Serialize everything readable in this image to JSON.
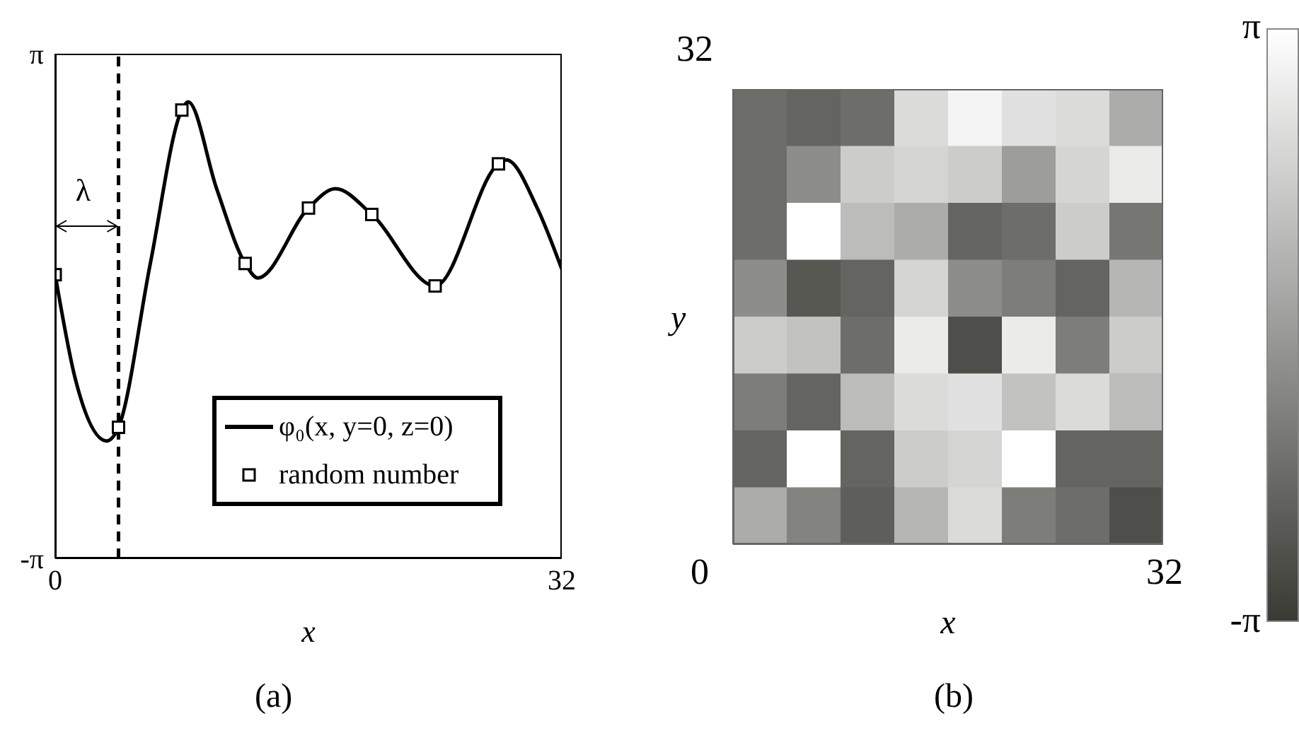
{
  "chart_data": [
    {
      "type": "line",
      "title": "(a)",
      "xlabel": "x",
      "xlim": [
        0,
        32
      ],
      "xticks": [
        0,
        32
      ],
      "ylim": [
        -3.1416,
        3.1416
      ],
      "yticks": [
        {
          "value": -3.1416,
          "label": "-π"
        },
        {
          "value": 3.1416,
          "label": "π"
        }
      ],
      "legend": "bottom right",
      "grid": false,
      "annotations": [
        "λ"
      ],
      "ref_lines": [
        {
          "axis": "x",
          "value": 4,
          "line_style": "dashed",
          "color": "#000000"
        }
      ],
      "series": [
        {
          "name": "φ₀(x, y=0, z=0)",
          "type": "line",
          "color": "#000000",
          "marker": "none",
          "x": [
            0,
            1.25,
            3.26,
            4,
            6,
            8,
            8.4,
            10.2,
            12,
            12.8,
            16,
            17.7,
            20,
            24,
            28,
            28.5,
            30.45,
            32
          ],
          "values": [
            0.39,
            -0.89,
            -1.68,
            -1.51,
            0.52,
            2.44,
            2.54,
            1.46,
            0.53,
            0.35,
            1.22,
            1.46,
            1.14,
            0.25,
            1.77,
            1.82,
            1.22,
            0.46
          ]
        },
        {
          "name": "random number",
          "type": "scatter",
          "color": "#000000",
          "marker": "square",
          "x": [
            0,
            4,
            8,
            12,
            16,
            20,
            24,
            28
          ],
          "values": [
            0.39,
            -1.51,
            2.44,
            0.53,
            1.22,
            1.14,
            0.25,
            1.77
          ]
        }
      ]
    },
    {
      "type": "heatmap",
      "title": "(b)",
      "xlabel": "x",
      "ylabel": "y",
      "annotations": [
        "32",
        "0",
        "32"
      ],
      "categories": [
        null,
        null,
        null,
        null,
        null,
        null,
        null,
        null
      ],
      "y_categories": [
        null,
        null,
        null,
        null,
        null,
        null,
        null,
        null
      ],
      "clim": [
        -3.1416,
        3.1416
      ],
      "cticks": [
        {
          "value": -3.1416,
          "label": "-π"
        },
        {
          "value": 3.1416,
          "label": "π"
        }
      ],
      "cells": [
        [
          -1.5,
          -1.8,
          -1.5,
          2.0,
          2.8,
          2.2,
          2.0,
          0.5
        ],
        [
          -1.5,
          -0.5,
          1.5,
          1.8,
          1.5,
          0,
          1.8,
          2.5
        ],
        [
          -1.5,
          3.1,
          1.0,
          0.5,
          -1.8,
          -1.5,
          1.5,
          -1.2
        ],
        [
          -0.5,
          -2.2,
          -1.8,
          1.8,
          -0.5,
          -1.0,
          -1.8,
          0.8
        ],
        [
          1.5,
          1.2,
          -1.5,
          2.5,
          -2.5,
          2.5,
          -1.0,
          1.5
        ],
        [
          -1.0,
          -1.8,
          1.0,
          2.0,
          2.2,
          1.2,
          2.0,
          1.0
        ],
        [
          -1.8,
          3.1,
          -1.8,
          1.5,
          1.8,
          3.1,
          -1.8,
          -1.8
        ],
        [
          0.5,
          -0.8,
          -2.0,
          0.8,
          2.0,
          -1.0,
          -1.5,
          -2.5
        ]
      ]
    }
  ]
}
